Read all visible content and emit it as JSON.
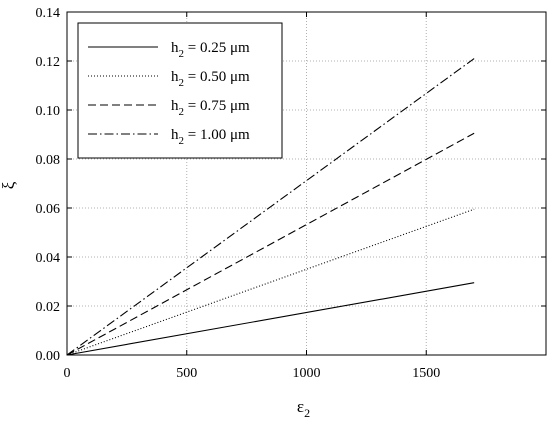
{
  "chart_data": {
    "type": "line",
    "title": "",
    "xlabel": "ε",
    "xlabel_sub": "2",
    "ylabel": "ξ",
    "xlim": [
      0,
      2000
    ],
    "ylim": [
      0,
      0.14
    ],
    "xticks": [
      0,
      500,
      1000,
      1500
    ],
    "xtick_labels": [
      "0",
      "500",
      "1000",
      "1500"
    ],
    "yticks": [
      0,
      0.02,
      0.04,
      0.06,
      0.08,
      0.1,
      0.12,
      0.14
    ],
    "ytick_labels": [
      "0.00",
      "0.02",
      "0.04",
      "0.06",
      "0.08",
      "0.10",
      "0.12",
      "0.14"
    ],
    "grid": true,
    "legend_position": "top-left",
    "series": [
      {
        "name": "h₂ = 0.25 μm",
        "label_prefix": "h",
        "label_sub": "2",
        "label_suffix": " = 0.25 μm",
        "style": "solid",
        "x": [
          0,
          1700
        ],
        "y": [
          0,
          0.0295
        ]
      },
      {
        "name": "h₂ = 0.50 μm",
        "label_prefix": "h",
        "label_sub": "2",
        "label_suffix": " = 0.50 μm",
        "style": "dotted",
        "x": [
          0,
          1700
        ],
        "y": [
          0,
          0.0595
        ]
      },
      {
        "name": "h₂ = 0.75 μm",
        "label_prefix": "h",
        "label_sub": "2",
        "label_suffix": " = 0.75 μm",
        "style": "dashed",
        "x": [
          0,
          1700
        ],
        "y": [
          0,
          0.0905
        ]
      },
      {
        "name": "h₂ = 1.00 μm",
        "label_prefix": "h",
        "label_sub": "2",
        "label_suffix": " = 1.00 μm",
        "style": "dashdot",
        "x": [
          0,
          1700
        ],
        "y": [
          0,
          0.121
        ]
      }
    ]
  }
}
